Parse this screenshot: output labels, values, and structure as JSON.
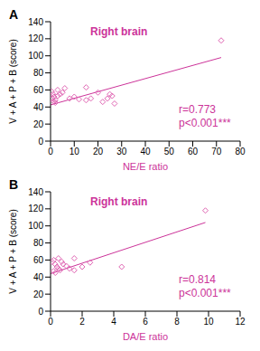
{
  "chart_data": [
    {
      "type": "scatter",
      "label": "A",
      "title": "Right brain",
      "x_label": "NE/E ratio",
      "y_label": "V + A + P + B (score)",
      "annotations": [
        "r=0.773",
        "p<0.001***"
      ],
      "text_color": "#cc3399",
      "xlim": [
        0,
        80
      ],
      "xticks": [
        0,
        10,
        20,
        30,
        40,
        50,
        60,
        70,
        80
      ],
      "ylim": [
        0,
        140
      ],
      "yticks": [
        0,
        20,
        40,
        60,
        80,
        100,
        120,
        140
      ],
      "series": [
        {
          "type": "scatter",
          "marker": "diamond",
          "color": "#e066b3",
          "x": [
            0.5,
            1,
            1.5,
            2,
            2,
            3,
            0.8,
            1.2,
            4,
            3,
            5,
            6,
            8,
            10,
            12,
            15,
            15,
            17,
            20,
            22,
            24,
            25,
            26,
            27,
            72
          ],
          "values": [
            58,
            55,
            52,
            48,
            45,
            60,
            50,
            47,
            55,
            53,
            57,
            62,
            50,
            52,
            49,
            63,
            48,
            50,
            57,
            46,
            50,
            55,
            53,
            44,
            118
          ]
        },
        {
          "type": "line",
          "color": "#cc3399",
          "x": [
            0,
            72
          ],
          "values": [
            42.5,
            98
          ]
        }
      ]
    },
    {
      "type": "scatter",
      "label": "B",
      "title": "Right brain",
      "x_label": "DA/E ratio",
      "y_label": "V + A + P + B (score)",
      "annotations": [
        "r=0.814",
        "p<0.001***"
      ],
      "text_color": "#cc3399",
      "xlim": [
        0,
        12
      ],
      "xticks": [
        0,
        2,
        4,
        6,
        8,
        10,
        12
      ],
      "ylim": [
        0,
        140
      ],
      "yticks": [
        0,
        20,
        40,
        60,
        80,
        100,
        120,
        140
      ],
      "series": [
        {
          "type": "scatter",
          "marker": "diamond",
          "color": "#e066b3",
          "x": [
            0.1,
            0.2,
            0.3,
            0.3,
            0.4,
            0.5,
            0.6,
            0.7,
            0.8,
            1,
            1.2,
            1.5,
            1.5,
            2,
            2.5,
            0.2,
            0.5,
            4.5,
            9.8
          ],
          "values": [
            58,
            60,
            55,
            45,
            52,
            50,
            48,
            58,
            55,
            53,
            50,
            62,
            48,
            52,
            57,
            47,
            62,
            52,
            118
          ]
        },
        {
          "type": "line",
          "color": "#cc3399",
          "x": [
            0,
            9.8
          ],
          "values": [
            44,
            104
          ]
        }
      ]
    }
  ]
}
